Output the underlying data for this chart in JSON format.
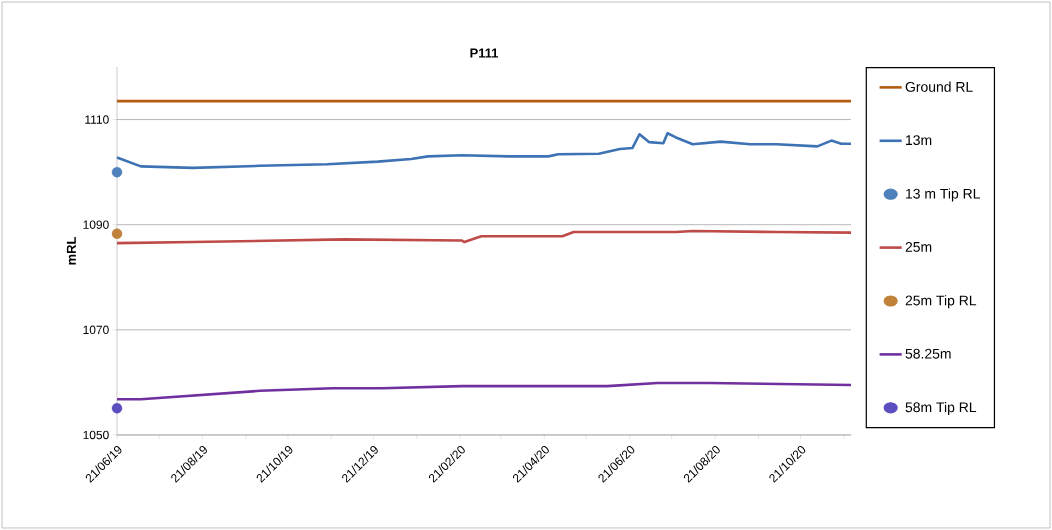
{
  "chart_data": {
    "type": "line",
    "title": "P111",
    "ylabel": "mRL",
    "xlim": [
      "2019-06-21",
      "2020-11-26"
    ],
    "ylim": [
      1050,
      1120
    ],
    "yticks": [
      1050,
      1070,
      1090,
      1110
    ],
    "xticks": [
      {
        "value": "2019-06-21",
        "label": "21/06/19"
      },
      {
        "value": "2019-07-21",
        "label": null
      },
      {
        "value": "2019-08-21",
        "label": "21/08/19"
      },
      {
        "value": "2019-09-21",
        "label": null
      },
      {
        "value": "2019-10-21",
        "label": "21/10/19"
      },
      {
        "value": "2019-11-21",
        "label": null
      },
      {
        "value": "2019-12-21",
        "label": "21/12/19"
      },
      {
        "value": "2020-01-21",
        "label": null
      },
      {
        "value": "2020-02-21",
        "label": "21/02/20"
      },
      {
        "value": "2020-03-21",
        "label": null
      },
      {
        "value": "2020-04-21",
        "label": "21/04/20"
      },
      {
        "value": "2020-05-21",
        "label": null
      },
      {
        "value": "2020-06-21",
        "label": "21/06/20"
      },
      {
        "value": "2020-07-21",
        "label": null
      },
      {
        "value": "2020-08-21",
        "label": "21/08/20"
      },
      {
        "value": "2020-09-21",
        "label": null
      },
      {
        "value": "2020-10-21",
        "label": "21/10/20"
      },
      {
        "value": "2020-11-21",
        "label": null
      }
    ],
    "grid": "y",
    "legend": "right",
    "series": [
      {
        "name": "Ground RL",
        "color": "#b35c0f",
        "x": [
          "2019-06-21",
          "2020-11-26"
        ],
        "values": [
          1113.5,
          1113.5
        ]
      },
      {
        "name": "13m",
        "color": "#3d72b4",
        "x": [
          "2019-06-21",
          "2019-07-08",
          "2019-08-14",
          "2019-10-01",
          "2019-11-18",
          "2019-12-24",
          "2020-01-17",
          "2020-01-29",
          "2020-02-22",
          "2020-03-27",
          "2020-04-24",
          "2020-05-01",
          "2020-05-30",
          "2020-06-14",
          "2020-06-23",
          "2020-06-28",
          "2020-07-05",
          "2020-07-15",
          "2020-07-18",
          "2020-07-24",
          "2020-08-05",
          "2020-08-25",
          "2020-09-15",
          "2020-10-04",
          "2020-11-02",
          "2020-11-12",
          "2020-11-19",
          "2020-11-26"
        ],
        "values": [
          1102.8,
          1101.1,
          1100.8,
          1101.2,
          1101.5,
          1102.0,
          1102.5,
          1103.0,
          1103.2,
          1103.0,
          1103.0,
          1103.4,
          1103.5,
          1104.4,
          1104.6,
          1107.2,
          1105.7,
          1105.5,
          1107.4,
          1106.6,
          1105.3,
          1105.8,
          1105.3,
          1105.3,
          1104.9,
          1106.0,
          1105.4,
          1105.4
        ]
      },
      {
        "name": "13 m Tip RL",
        "type": "scatter",
        "marker": "circle",
        "color": "#4f81bd",
        "x": [
          "2019-06-21"
        ],
        "values": [
          1100.0
        ]
      },
      {
        "name": "25m",
        "color": "#be4b48",
        "x": [
          "2019-06-21",
          "2019-08-14",
          "2019-11-30",
          "2020-02-22",
          "2020-02-24",
          "2020-03-07",
          "2020-05-04",
          "2020-05-12",
          "2020-07-24",
          "2020-08-05",
          "2020-10-04",
          "2020-11-26"
        ],
        "values": [
          1086.5,
          1086.7,
          1087.2,
          1087.0,
          1086.7,
          1087.8,
          1087.8,
          1088.6,
          1088.6,
          1088.8,
          1088.6,
          1088.5
        ]
      },
      {
        "name": "25m Tip RL",
        "type": "scatter",
        "marker": "circle",
        "color": "#c0823a",
        "x": [
          "2019-06-21"
        ],
        "values": [
          1088.3
        ]
      },
      {
        "name": "58.25m",
        "color": "#7030a0",
        "x": [
          "2019-06-21",
          "2019-07-08",
          "2019-10-01",
          "2019-11-22",
          "2019-12-27",
          "2020-02-22",
          "2020-03-27",
          "2020-06-05",
          "2020-07-11",
          "2020-08-16",
          "2020-11-26"
        ],
        "values": [
          1056.8,
          1056.8,
          1058.4,
          1058.9,
          1058.9,
          1059.3,
          1059.3,
          1059.3,
          1059.9,
          1059.9,
          1059.5
        ]
      },
      {
        "name": "58m Tip RL",
        "type": "scatter",
        "marker": "circle",
        "color": "#5b4fbf",
        "x": [
          "2019-06-21"
        ],
        "values": [
          1055.1
        ]
      }
    ]
  }
}
